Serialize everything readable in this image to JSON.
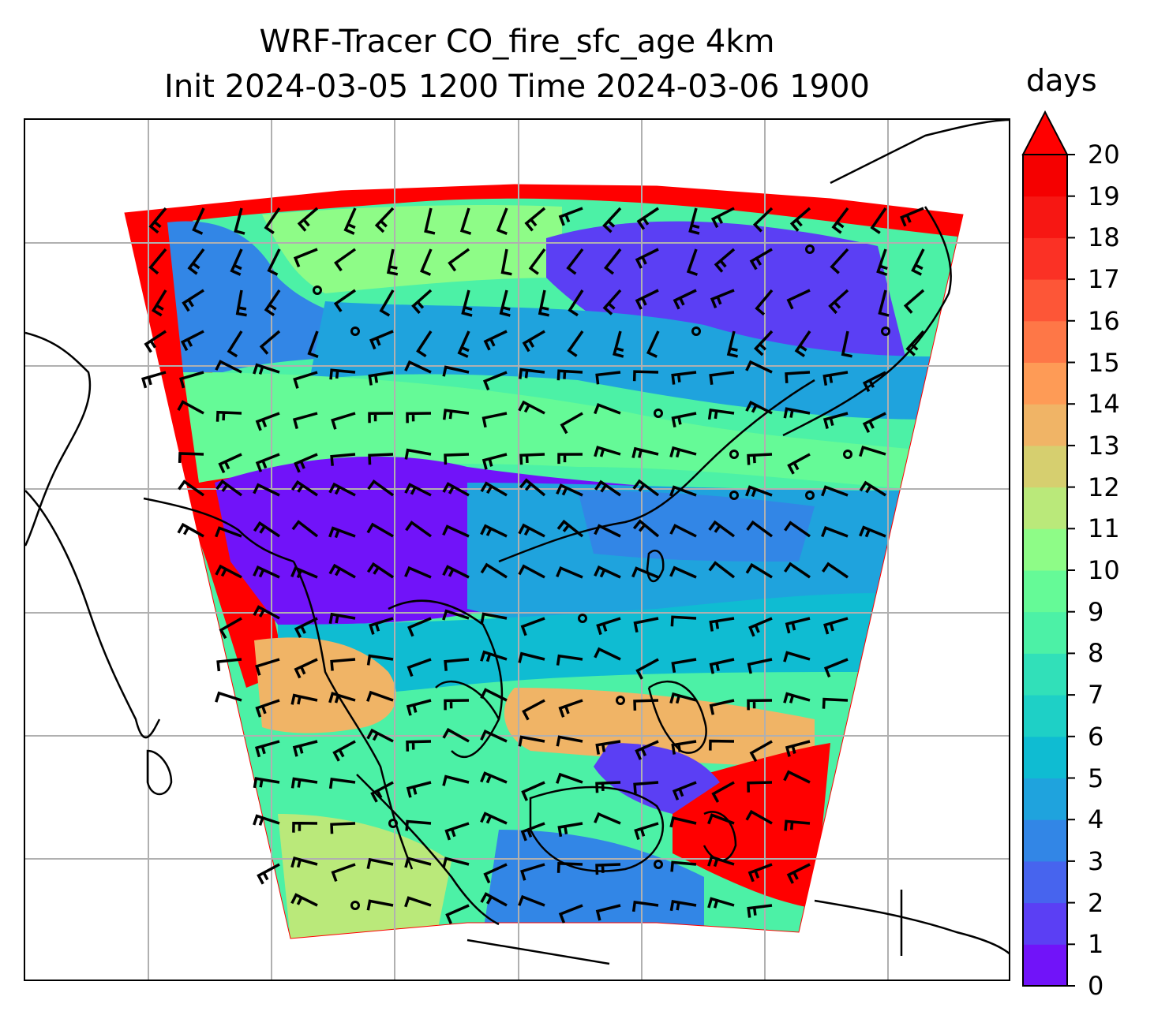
{
  "title": {
    "line1": "WRF-Tracer CO_fire_sfc_age 4km",
    "line2": "Init 2024-03-05 1200 Time 2024-03-06 1900"
  },
  "colorbar": {
    "unit_label": "days",
    "ticks": [
      "0",
      "1",
      "2",
      "3",
      "4",
      "5",
      "6",
      "7",
      "8",
      "9",
      "10",
      "11",
      "12",
      "13",
      "14",
      "15",
      "16",
      "17",
      "18",
      "19",
      "20"
    ],
    "extend": "max",
    "colors": [
      "#7113f9",
      "#5b3ff4",
      "#4764ee",
      "#3286e6",
      "#1fa3dd",
      "#0fbcd2",
      "#1ed0c6",
      "#31e0b9",
      "#4cf1a6",
      "#65fa97",
      "#8efc87",
      "#bae97a",
      "#d6cf6f",
      "#f0b466",
      "#fe9b56",
      "#fe7747",
      "#fd5637",
      "#fb3125",
      "#f71713",
      "#f50000",
      "#ff0000"
    ],
    "palette": "rainbow"
  },
  "map": {
    "gridlines": true,
    "coastlines": true,
    "field_name": "CO_fire_sfc_age",
    "overlay": "wind barbs"
  }
}
